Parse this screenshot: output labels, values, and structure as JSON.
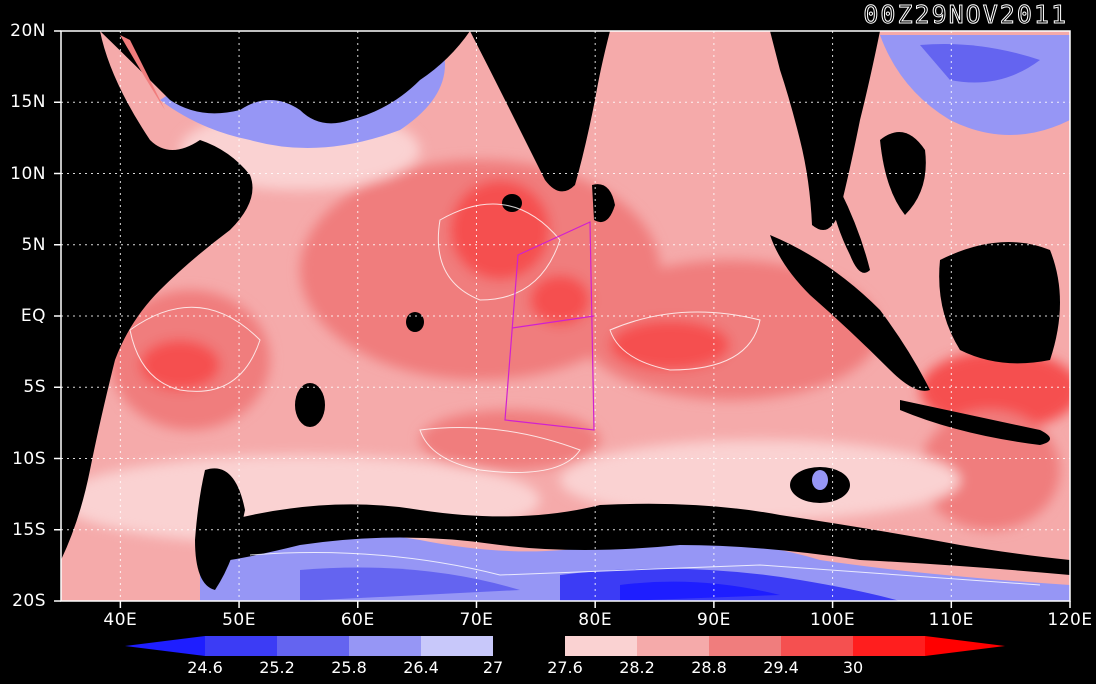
{
  "timestamp": "00Z29NOV2011",
  "lat_labels": [
    "20N",
    "15N",
    "10N",
    "5N",
    "EQ",
    "5S",
    "10S",
    "15S",
    "20S"
  ],
  "lon_labels": [
    "40E",
    "50E",
    "60E",
    "70E",
    "80E",
    "90E",
    "100E",
    "110E",
    "120E"
  ],
  "colorbar": {
    "ticks": [
      "24.6",
      "25.2",
      "25.8",
      "26.4",
      "27",
      "27.6",
      "28.2",
      "28.8",
      "29.4",
      "30"
    ],
    "colors": [
      "#1e1eff",
      "#3c3cf5",
      "#6464f0",
      "#9696f5",
      "#c8c8fa",
      "#000000",
      "#fad2d2",
      "#f5aaaa",
      "#f07d7d",
      "#f55050",
      "#ff1e1e",
      "#ff0000"
    ]
  },
  "colors": {
    "background": "#000000",
    "box": "#d020d0",
    "coast": "#8000ff",
    "frame": "#ffffff"
  }
}
